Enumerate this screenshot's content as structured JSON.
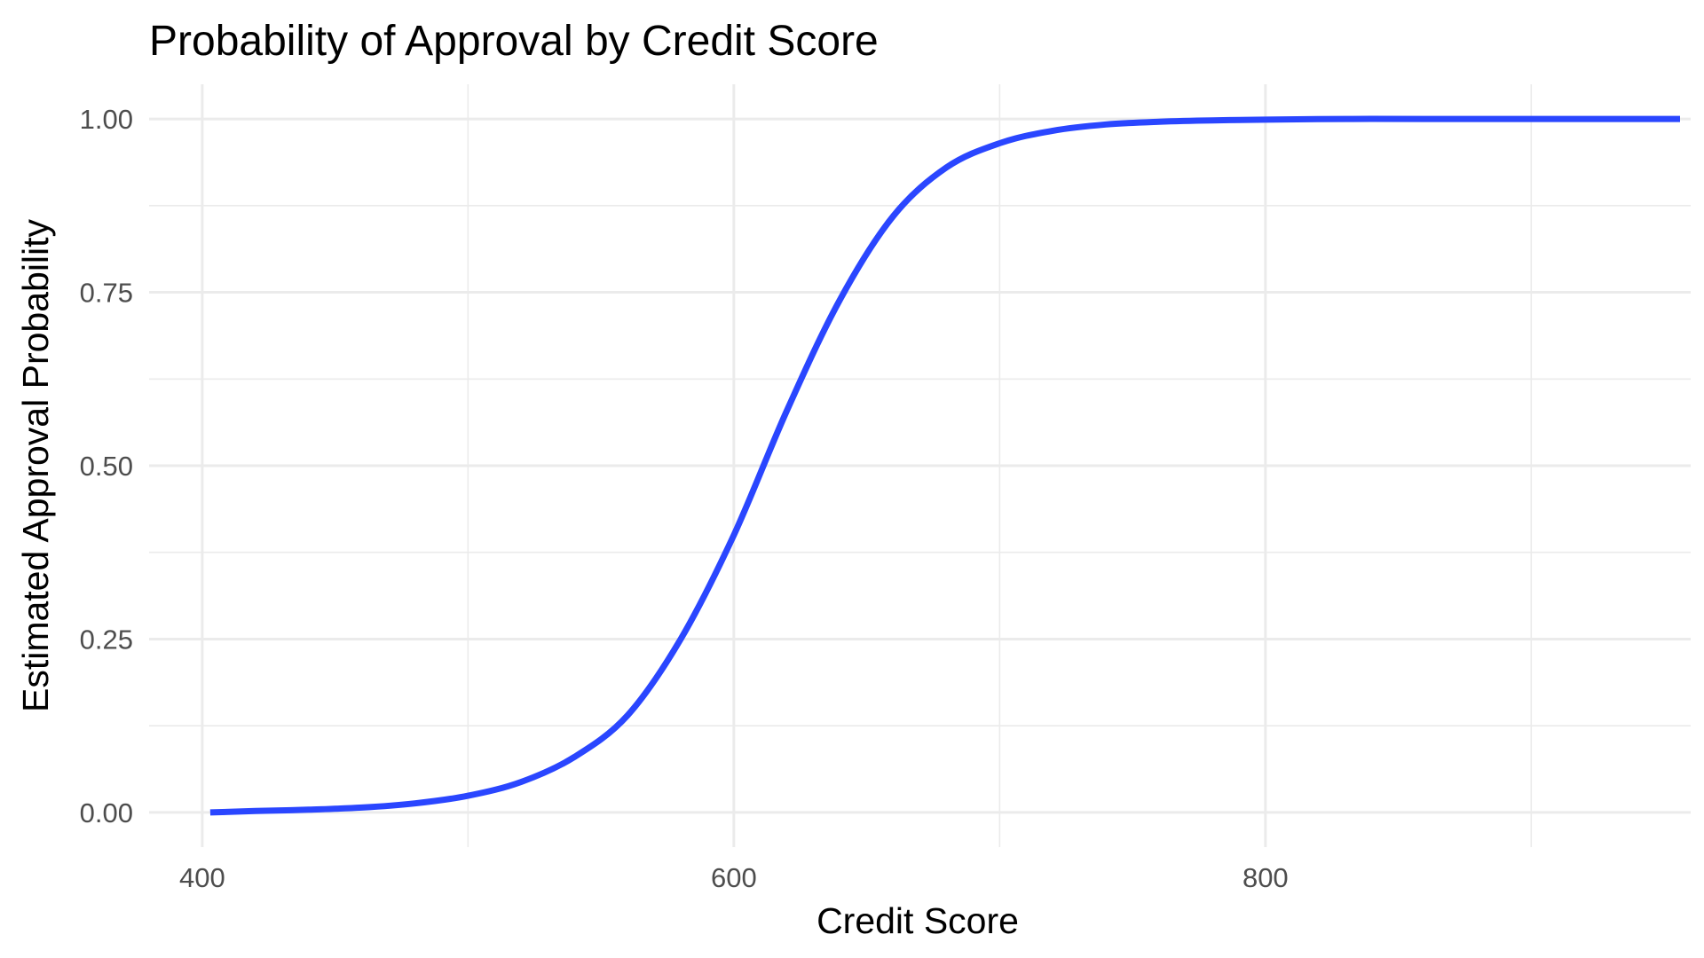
{
  "chart_data": {
    "type": "line",
    "title": "Probability of Approval by Credit Score",
    "xlabel": "Credit Score",
    "ylabel": "Estimated Approval Probability",
    "xlim": [
      380,
      960
    ],
    "ylim": [
      -0.05,
      1.05
    ],
    "x_ticks": [
      400,
      600,
      800
    ],
    "x_tick_labels": [
      "400",
      "600",
      "800"
    ],
    "x_minor_ticks": [
      500,
      700,
      900
    ],
    "y_ticks": [
      0,
      0.25,
      0.5,
      0.75,
      1
    ],
    "y_tick_labels": [
      "0.00",
      "0.25",
      "0.50",
      "0.75",
      "1.00"
    ],
    "y_minor_ticks": [
      0.125,
      0.375,
      0.625,
      0.875
    ],
    "grid": true,
    "line_color": "#2a46ff",
    "series": [
      {
        "x": [
          403,
          420,
          440,
          460,
          480,
          500,
          520,
          540,
          560,
          580,
          600,
          620,
          640,
          660,
          680,
          700,
          720,
          740,
          760,
          780,
          800,
          830,
          860,
          900,
          956
        ],
        "y": [
          0.0,
          0.002,
          0.004,
          0.007,
          0.013,
          0.024,
          0.044,
          0.08,
          0.14,
          0.25,
          0.4,
          0.58,
          0.74,
          0.86,
          0.93,
          0.965,
          0.983,
          0.992,
          0.996,
          0.998,
          0.999,
          1.0,
          1.0,
          1.0,
          1.0
        ]
      }
    ]
  }
}
